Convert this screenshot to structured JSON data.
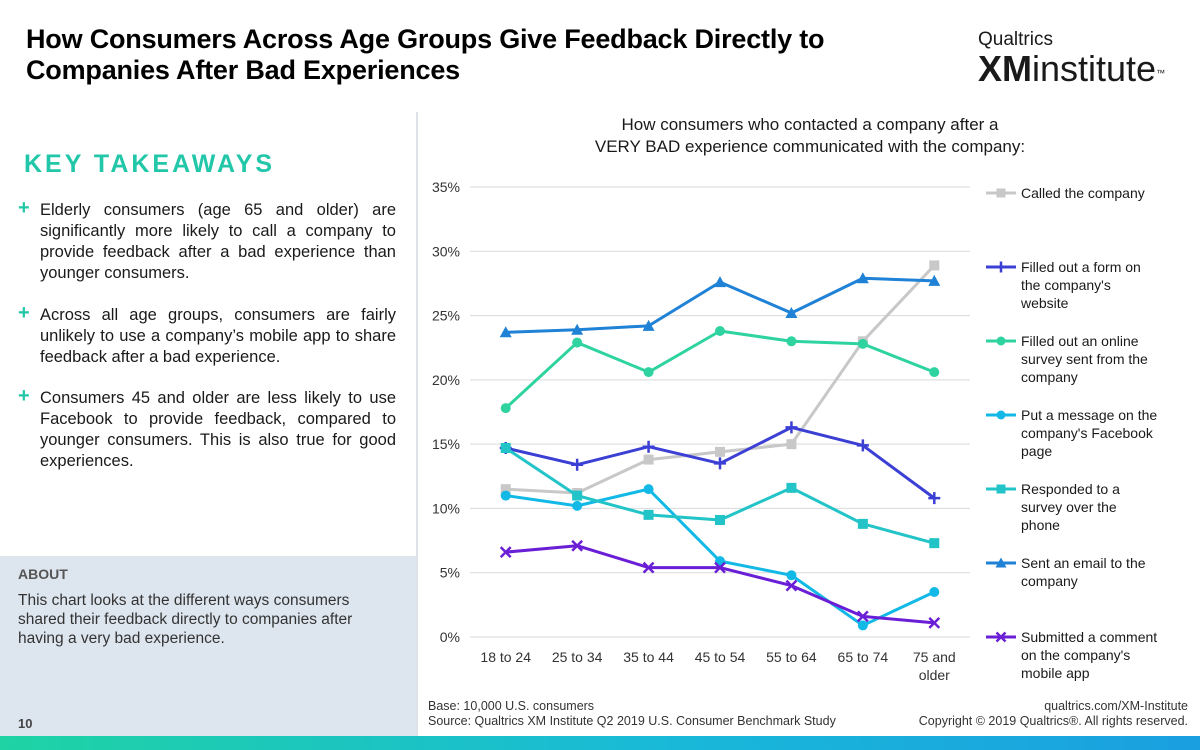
{
  "header": {
    "title": "How Consumers Across Age Groups Give Feedback Directly to Companies After Bad Experiences",
    "logo_top": "Qualtrics",
    "logo_xm": "XM",
    "logo_rest": "institute",
    "logo_tm": "™"
  },
  "takeaways": {
    "heading": "KEY TAKEAWAYS",
    "items": [
      "Elderly consumers (age 65 and older) are significantly more likely to call a company to provide feedback after a bad experience than younger consumers.",
      "Across all age groups, consumers are fairly unlikely to use a company’s mobile app to share feedback after a bad experience.",
      "Consumers 45 and older are less likely to use Facebook to provide feedback, compared to younger consumers. This is also true for good experiences."
    ]
  },
  "about": {
    "title": "ABOUT",
    "text": "This chart looks at the different ways consumers shared their feedback directly to companies after having a very bad experience."
  },
  "page_number": "10",
  "footer": {
    "base": "Base: 10,000 U.S. consumers",
    "source": "Source: Qualtrics XM Institute Q2 2019 U.S. Consumer Benchmark Study",
    "url": "qualtrics.com/XM-Institute",
    "copyright": "Copyright © 2019 Qualtrics®. All rights reserved."
  },
  "chart_data": {
    "type": "line",
    "title_line1": "How consumers who contacted a company after a",
    "title_line2": "VERY BAD experience communicated with the company:",
    "categories": [
      "18 to 24",
      "25 to 34",
      "35 to 44",
      "45 to 54",
      "55 to 64",
      "65 to 74",
      "75 and older"
    ],
    "y_ticks": [
      "0%",
      "5%",
      "10%",
      "15%",
      "20%",
      "25%",
      "30%",
      "35%"
    ],
    "ylim": [
      0,
      35
    ],
    "grid": "horizontal",
    "legend_position": "right",
    "series": [
      {
        "name": "Called the company",
        "color": "#c8c8c8",
        "marker": "square",
        "values": [
          11.5,
          11.2,
          13.8,
          14.4,
          15.0,
          23.0,
          28.9
        ]
      },
      {
        "name": "Filled out a form on the company's website",
        "color": "#3b3fd4",
        "marker": "plus",
        "values": [
          14.7,
          13.4,
          14.8,
          13.5,
          16.3,
          14.9,
          10.8
        ]
      },
      {
        "name": "Filled out an online survey sent from the company",
        "color": "#2fd3a0",
        "marker": "circle",
        "values": [
          17.8,
          22.9,
          20.6,
          23.8,
          23.0,
          22.8,
          20.6
        ]
      },
      {
        "name": "Put a message on the company's Facebook page",
        "color": "#12b9e6",
        "marker": "circle",
        "values": [
          11.0,
          10.2,
          11.5,
          5.9,
          4.8,
          0.9,
          3.5
        ]
      },
      {
        "name": "Responded to a survey over the phone",
        "color": "#23c4c8",
        "marker": "square",
        "values": [
          14.7,
          11.0,
          9.5,
          9.1,
          11.6,
          8.8,
          7.3
        ]
      },
      {
        "name": "Sent an email to the company",
        "color": "#1f82d6",
        "marker": "triangle",
        "values": [
          23.7,
          23.9,
          24.2,
          27.6,
          25.2,
          27.9,
          27.7
        ]
      },
      {
        "name": "Submitted a comment on the company's mobile app",
        "color": "#6a1fd6",
        "marker": "x",
        "values": [
          6.6,
          7.1,
          5.4,
          5.4,
          4.0,
          1.6,
          1.1
        ]
      }
    ]
  }
}
